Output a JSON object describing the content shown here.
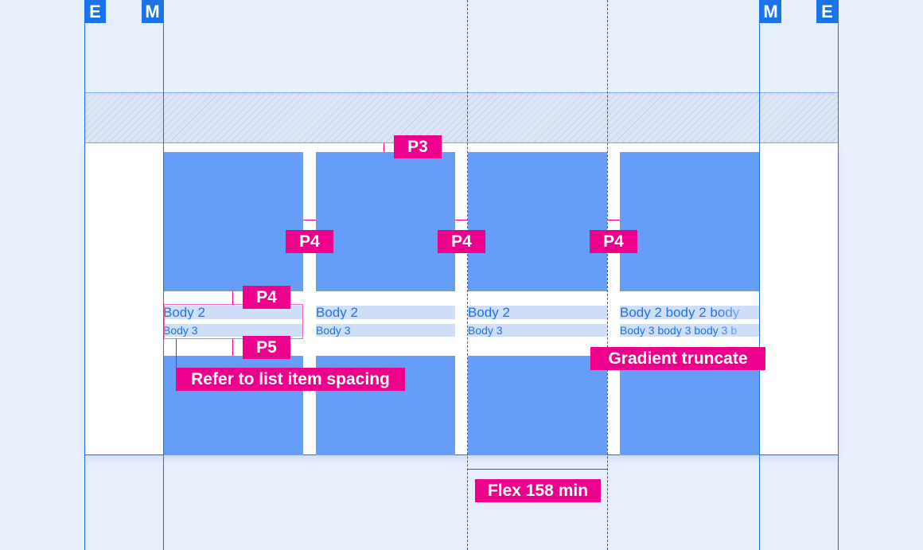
{
  "markers": {
    "edge": "E",
    "margin": "M"
  },
  "colors": {
    "background": "#e8effc",
    "grid_line": "#1a73e8",
    "tile": "#669df6",
    "text_bg": "#cfdffa",
    "annotation": "#ec008c"
  },
  "cards": [
    {
      "body2": "Body 2",
      "body3": "Body 3"
    },
    {
      "body2": "Body 2",
      "body3": "Body 3"
    },
    {
      "body2": "Body 2",
      "body3": "Body 3"
    },
    {
      "body2": "Body 2 body 2 body",
      "body3": "Body 3 body 3 body 3 b"
    }
  ],
  "annotations": {
    "p3": "P3",
    "p4": "P4",
    "p5": "P5",
    "list_spacing": "Refer to list item spacing",
    "gradient": "Gradient truncate",
    "flex": "Flex 158 min"
  }
}
